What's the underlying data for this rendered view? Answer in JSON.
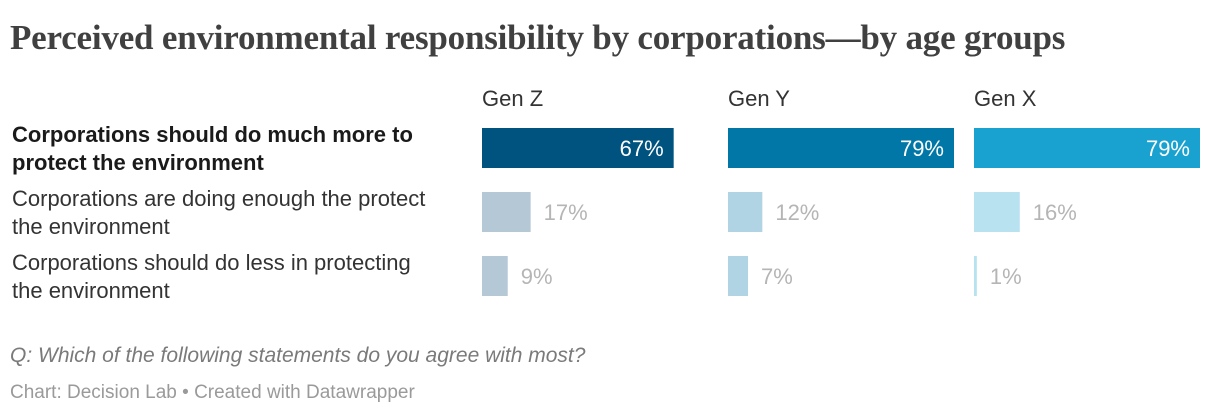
{
  "title": "Perceived environmental responsibility by corporations—by age groups",
  "chart_data": {
    "type": "bar",
    "title": "Perceived environmental responsibility by corporations—by age groups",
    "categories": [
      "Corporations should do much more to protect the environment",
      "Corporations are doing enough the protect the environment",
      "Corporations should do less in protecting the environment"
    ],
    "category_lines": [
      [
        "Corporations should do much more to",
        "protect the environment"
      ],
      [
        "Corporations are doing enough the protect",
        "the environment"
      ],
      [
        "Corporations should do less in protecting",
        "the environment"
      ]
    ],
    "highlighted_category": 0,
    "series": [
      {
        "name": "Gen Z",
        "values": [
          67,
          17,
          9
        ],
        "labels": [
          "67%",
          "17%",
          "9%"
        ],
        "color": "#00537e",
        "muted_color": "#b4c8d6"
      },
      {
        "name": "Gen Y",
        "values": [
          79,
          12,
          7
        ],
        "labels": [
          "79%",
          "12%",
          "7%"
        ],
        "color": "#0077a6",
        "muted_color": "#b0d4e4"
      },
      {
        "name": "Gen X",
        "values": [
          79,
          16,
          1
        ],
        "labels": [
          "79%",
          "16%",
          "1%"
        ],
        "color": "#19a2cf",
        "muted_color": "#b8e2f0"
      }
    ],
    "xlim": [
      0,
      79
    ],
    "grid": false,
    "legend": "none",
    "layout": "small-multiples"
  },
  "note": "Q: Which of the following statements do you agree with most?",
  "source": "Chart: Decision Lab • Created with Datawrapper"
}
